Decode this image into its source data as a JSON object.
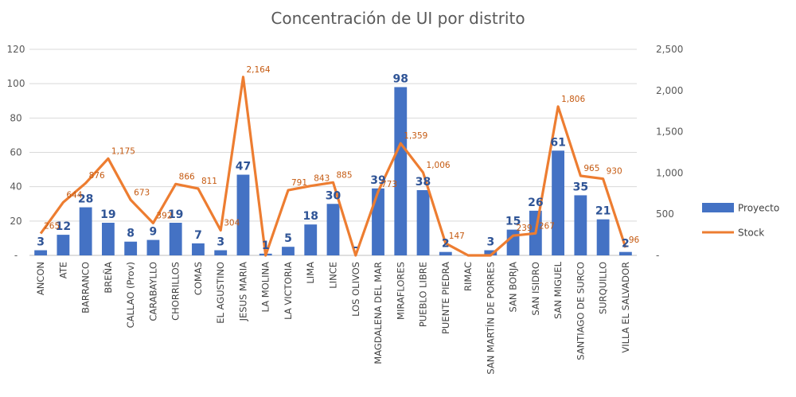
{
  "chart_data": {
    "type": "bar",
    "title": "Concentración de UI por distrito",
    "categories": [
      "ANCON",
      "ATE",
      "BARRANCO",
      "BREÑA",
      "CALLAO (Prov)",
      "CARABAYLLO",
      "CHORRILLOS",
      "COMAS",
      "EL AGUSTINO",
      "JESUS MARIA",
      "LA MOLINA",
      "LA VICTORIA",
      "LIMA",
      "LINCE",
      "LOS OLIVOS",
      "MAGDALENA DEL MAR",
      "MIRAFLORES",
      "PUEBLO LIBRE",
      "PUENTE PIEDRA",
      "RIMAC",
      "SAN MARTÍN DE PORRES",
      "SAN BORJA",
      "SAN ISIDRO",
      "SAN MIGUEL",
      "SANTIAGO DE SURCO",
      "SURQUILLO",
      "VILLA EL SALVADOR"
    ],
    "series": [
      {
        "name": "Proyecto",
        "type": "bar",
        "axis": "left",
        "color": "#4472C4",
        "values": [
          3,
          12,
          28,
          19,
          8,
          9,
          19,
          7,
          3,
          47,
          1,
          5,
          18,
          30,
          0,
          39,
          98,
          38,
          2,
          0,
          3,
          15,
          26,
          61,
          35,
          21,
          2
        ],
        "labels": [
          "3",
          "12",
          "28",
          "19",
          "8",
          "9",
          "19",
          "7",
          "3",
          "47",
          "1",
          "5",
          "18",
          "30",
          "-",
          "39",
          "98",
          "38",
          "2",
          "",
          "3",
          "15",
          "26",
          "61",
          "35",
          "21",
          "2"
        ]
      },
      {
        "name": "Stock",
        "type": "line",
        "axis": "right",
        "color": "#ED7D31",
        "values": [
          265,
          644,
          876,
          1175,
          673,
          392,
          866,
          811,
          304,
          2164,
          0,
          791,
          843,
          885,
          0,
          773,
          1359,
          1006,
          147,
          0,
          0,
          239,
          267,
          1806,
          965,
          930,
          96
        ],
        "labels": [
          "265",
          "644",
          "876",
          "1,175",
          "673",
          "392",
          "866",
          "811",
          "304",
          "2,164",
          "",
          "791",
          "843",
          "885",
          "",
          "773",
          "1,359",
          "1,006",
          "147",
          "",
          "",
          "239",
          "267",
          "1,806",
          "965",
          "930",
          "96"
        ]
      }
    ],
    "y_left": {
      "min": 0,
      "max": 120,
      "step": 20,
      "tick_labels": [
        "-",
        "20",
        "40",
        "60",
        "80",
        "100",
        "120"
      ]
    },
    "y_right": {
      "min": 0,
      "max": 2500,
      "step": 500,
      "tick_labels": [
        "-",
        "500",
        "1,000",
        "1,500",
        "2,000",
        "2,500"
      ]
    },
    "grid": true,
    "legend": "right",
    "legend_items": [
      "Proyecto",
      "Stock"
    ]
  }
}
